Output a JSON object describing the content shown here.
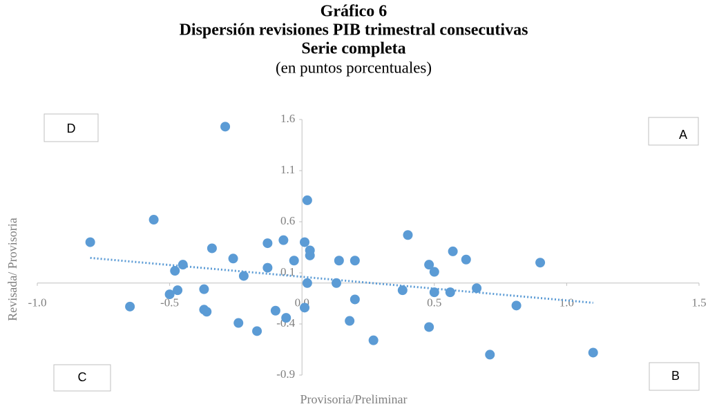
{
  "chart_data": {
    "type": "scatter",
    "title": "Gráfico 6",
    "subtitle": "Dispersión revisiones PIB trimestral consecutivas",
    "subtitle2": "Serie completa",
    "units": "(en puntos porcentuales)",
    "x_label": "Provisoria/Preliminar",
    "y_label": "Revisada/ Provisoria",
    "quadrants": [
      "D",
      "A",
      "C",
      "B"
    ],
    "color": "#5b9bd5",
    "trendline": true,
    "xlim": [
      -1.0,
      1.5
    ],
    "xticks": [
      {
        "value": -1.0,
        "label": "-1.0"
      },
      {
        "value": -0.5,
        "label": "-0.5"
      },
      {
        "value": 0,
        "label": "0.0"
      },
      {
        "value": 0.5,
        "label": "0.5"
      },
      {
        "value": 1.0,
        "label": "1.0"
      },
      {
        "value": 1.5,
        "label": "1.5"
      }
    ],
    "ylim": [
      -0.9,
      1.6
    ],
    "yticks": [
      -0.9,
      -0.4,
      0.1,
      0.6,
      1.1,
      1.6
    ],
    "x": [
      -0.8,
      -0.65,
      -0.56,
      -0.5,
      -0.48,
      -0.47,
      -0.45,
      -0.37,
      -0.37,
      -0.36,
      -0.34,
      -0.29,
      -0.26,
      -0.24,
      -0.22,
      -0.17,
      -0.13,
      -0.13,
      -0.1,
      -0.07,
      -0.06,
      -0.03,
      0.01,
      0.01,
      0.02,
      0.02,
      0.03,
      0.03,
      0.13,
      0.14,
      0.18,
      0.2,
      0.2,
      0.27,
      0.38,
      0.4,
      0.48,
      0.48,
      0.5,
      0.5,
      0.56,
      0.57,
      0.62,
      0.66,
      0.71,
      0.81,
      0.9,
      1.1
    ],
    "y": [
      0.4,
      -0.23,
      0.62,
      -0.11,
      0.12,
      -0.07,
      0.18,
      -0.06,
      -0.26,
      -0.28,
      0.34,
      1.53,
      0.24,
      -0.39,
      0.07,
      -0.47,
      0.15,
      0.39,
      -0.27,
      0.42,
      -0.34,
      0.22,
      0.4,
      -0.24,
      0.0,
      0.81,
      0.32,
      0.27,
      0.0,
      0.22,
      -0.37,
      0.22,
      -0.16,
      -0.56,
      -0.07,
      0.47,
      0.18,
      -0.43,
      0.11,
      -0.09,
      -0.09,
      0.31,
      0.23,
      -0.05,
      -0.7,
      -0.22,
      0.2,
      -0.68
    ]
  }
}
